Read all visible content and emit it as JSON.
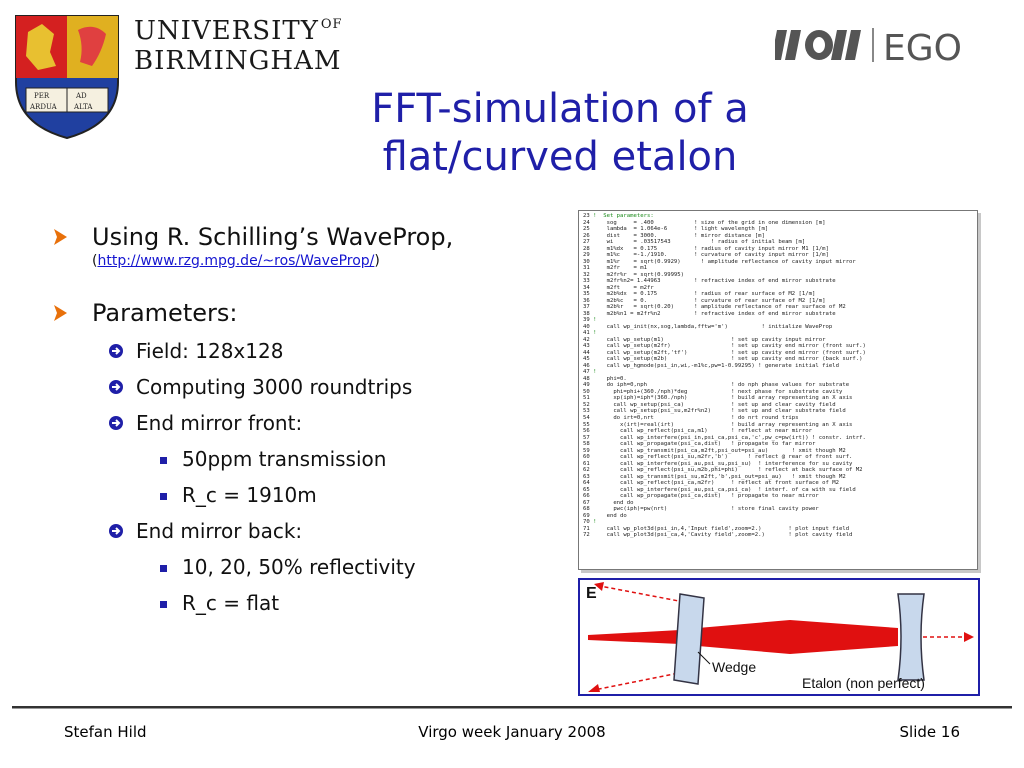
{
  "header": {
    "university_line1": "UNIVERSITY",
    "university_of": "OF",
    "university_line2": "BIRMINGHAM",
    "ego_text": "EGO"
  },
  "title": {
    "line1": "FFT-simulation of a",
    "line2": "flat/curved etalon"
  },
  "bullets": {
    "item1": "Using R. Schilling’s WaveProp,",
    "link_prefix": "(",
    "link_url": "http://www.rzg.mpg.de/~ros/WaveProp/",
    "link_suffix": ")",
    "item2": "Parameters:",
    "sub1": "Field: 128x128",
    "sub2": "Computing 3000 roundtrips",
    "sub3": "End mirror front:",
    "sub3a": "50ppm transmission",
    "sub3b": "R_c = 1910m",
    "sub4": "End mirror back:",
    "sub4a": "10, 20, 50% reflectivity",
    "sub4b": "R_c = flat"
  },
  "code": [
    {
      "n": "23",
      "t": "!  Set parameters:"
    },
    {
      "n": "24",
      "t": "    sog     = .400            ! size of the grid in one dimension [m]"
    },
    {
      "n": "25",
      "t": "    lambda  = 1.064e-6        ! light wavelength [m]"
    },
    {
      "n": "26",
      "t": "    dist    = 3000.           ! mirror distance [m]"
    },
    {
      "n": "27",
      "t": "    wi      = .03517543            ! radius of initial beam [m]"
    },
    {
      "n": "28",
      "t": "    m1%dx   = 0.175           ! radius of cavity input mirror M1 [1/m]"
    },
    {
      "n": "29",
      "t": "    m1%c    =-1./1910.        ! curvature of cavity input mirror [1/m]"
    },
    {
      "n": "30",
      "t": "    m1%r    = sqrt(0.9929)      ! amplitude reflectance of cavity input mirror"
    },
    {
      "n": "31",
      "t": "    m2fr    = m1"
    },
    {
      "n": "32",
      "t": "    m2fr%r  = sqrt(0.99995)"
    },
    {
      "n": "33",
      "t": "    m2fr%n2= 1.44963          ! refractive index of end mirror substrate"
    },
    {
      "n": "34",
      "t": "    m2ft    = m2fr"
    },
    {
      "n": "35",
      "t": "    m2b%dx  = 0.175           ! radius of rear surface of M2 [1/m]"
    },
    {
      "n": "36",
      "t": "    m2b%c   = 0.              ! curvature of rear surface of M2 [1/m]"
    },
    {
      "n": "37",
      "t": "    m2b%r   = sqrt(0.20)      ! amplitude reflectance of rear surface of M2"
    },
    {
      "n": "38",
      "t": "    m2b%n1 = m2fr%n2          ! refractive index of end mirror substrate"
    },
    {
      "n": "39",
      "t": "!"
    },
    {
      "n": "40",
      "t": "    call wp_init(nx,sog,lambda,fftw='m')          ! initialize WaveProp"
    },
    {
      "n": "41",
      "t": "!"
    },
    {
      "n": "42",
      "t": "    call wp_setup(m1)                    ! set up cavity input mirror"
    },
    {
      "n": "43",
      "t": "    call wp_setup(m2fr)                  ! set up cavity end mirror (front surf.)"
    },
    {
      "n": "44",
      "t": "    call wp_setup(m2ft,'tf')             ! set up cavity end mirror (front surf.)"
    },
    {
      "n": "45",
      "t": "    call wp_setup(m2b)                   ! set up cavity end mirror (back surf.)"
    },
    {
      "n": "46",
      "t": "    call wp_hgmode(psi_in,wi,-m1%c,pw=1-0.99295) ! generate initial field"
    },
    {
      "n": "47",
      "t": "!"
    },
    {
      "n": "48",
      "t": "    phi=0."
    },
    {
      "n": "49",
      "t": "    do iph=0,nph                         ! do nph phase values for substrate"
    },
    {
      "n": "50",
      "t": "      phi=phi+(360./nph)*deg             ! next phase for substrate cavity"
    },
    {
      "n": "51",
      "t": "      xp(iph)=iph*(360./nph)             ! build array representing an X axis"
    },
    {
      "n": "52",
      "t": "      call wp_setup(psi_ca)              ! set up and clear cavity field"
    },
    {
      "n": "53",
      "t": "      call wp_setup(psi_su,m2fr%n2)      ! set up and clear substrate field"
    },
    {
      "n": "54",
      "t": "      do irt=0,nrt                       ! do nrt round trips"
    },
    {
      "n": "55",
      "t": "        x(irt)=real(irt)                 ! build array representing an X axis"
    },
    {
      "n": "56",
      "t": "        call wp_reflect(psi_ca,m1)       ! reflect at near mirror"
    },
    {
      "n": "57",
      "t": "        call wp_interfere(psi_in,psi_ca,psi_ca,'c',pw_c=pw(irt)) ! constr. intrf."
    },
    {
      "n": "58",
      "t": "        call wp_propagate(psi_ca,dist)   ! propagate to far mirror"
    },
    {
      "n": "59",
      "t": "        call wp_transmit(psi_ca,m2ft,psi_out=psi_au)       ! xmit though M2"
    },
    {
      "n": "60",
      "t": "        call wp_reflect(psi_su,m2fr,'b')      ! reflect @ rear of front surf."
    },
    {
      "n": "61",
      "t": "        call wp_interfere(psi_au,psi_su,psi_su)  ! interference for su cavity"
    },
    {
      "n": "62",
      "t": "        call wp_reflect(psi_su,m2b,phi=phi)      ! reflect at back surface of M2"
    },
    {
      "n": "63",
      "t": "        call wp_transmit(psi_su,m2ft,'b',psi_out=psi_au)   ! xmit though M2"
    },
    {
      "n": "64",
      "t": "        call wp_reflect(psi_ca,m2fr)     ! reflect at front surface of M2"
    },
    {
      "n": "65",
      "t": "        call wp_interfere(psi_au,psi_ca,psi_ca)  ! interf. of ca with su field"
    },
    {
      "n": "66",
      "t": "        call wp_propagate(psi_ca,dist)   ! propagate to near mirror"
    },
    {
      "n": "67",
      "t": "      end do"
    },
    {
      "n": "68",
      "t": "      pwc(iph)=pw(nrt)                   ! store final cavity power"
    },
    {
      "n": "69",
      "t": "    end do"
    },
    {
      "n": "70",
      "t": "!"
    },
    {
      "n": "71",
      "t": "    call wp_plot3d(psi_in,4,'Input field',zoom=2.)        ! plot input field"
    },
    {
      "n": "72",
      "t": "    call wp_plot3d(psi_ca,4,'Cavity field',zoom=2.)       ! plot cavity field"
    }
  ],
  "diagram": {
    "label_e": "E",
    "label_wedge": "Wedge",
    "label_etalon": "Etalon (non perfect)",
    "beam_color": "#e01010",
    "mirror_color": "#c8d8ec"
  },
  "footer": {
    "author": "Stefan Hild",
    "event": "Virgo week January 2008",
    "slide": "Slide 16"
  },
  "colors": {
    "title": "#1f1fa8",
    "bullet_arrow": "#e8700a",
    "sub_arrow": "#1f1fa8",
    "link": "#1515d0"
  }
}
